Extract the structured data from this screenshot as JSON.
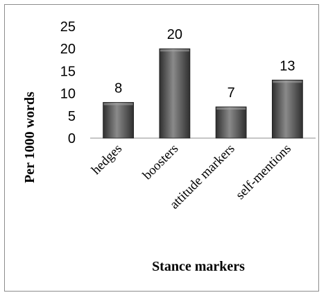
{
  "chart_data": {
    "type": "bar",
    "title": "",
    "xlabel": "Stance markers",
    "ylabel": "Per 1000 words",
    "categories": [
      "hedges",
      "boosters",
      "attitude markers",
      "self-mentions"
    ],
    "values": [
      8,
      20,
      7,
      13
    ],
    "data_labels": [
      "8",
      "20",
      "7",
      "13"
    ],
    "yticks": [
      "0",
      "5",
      "10",
      "15",
      "20",
      "25"
    ],
    "ylim": [
      0,
      25
    ],
    "grid": false,
    "legend": "none",
    "colors": {
      "bar_dark": "#2f2f2f",
      "bar_light": "#8a8a8a",
      "axis": "#8c8c8c"
    }
  }
}
